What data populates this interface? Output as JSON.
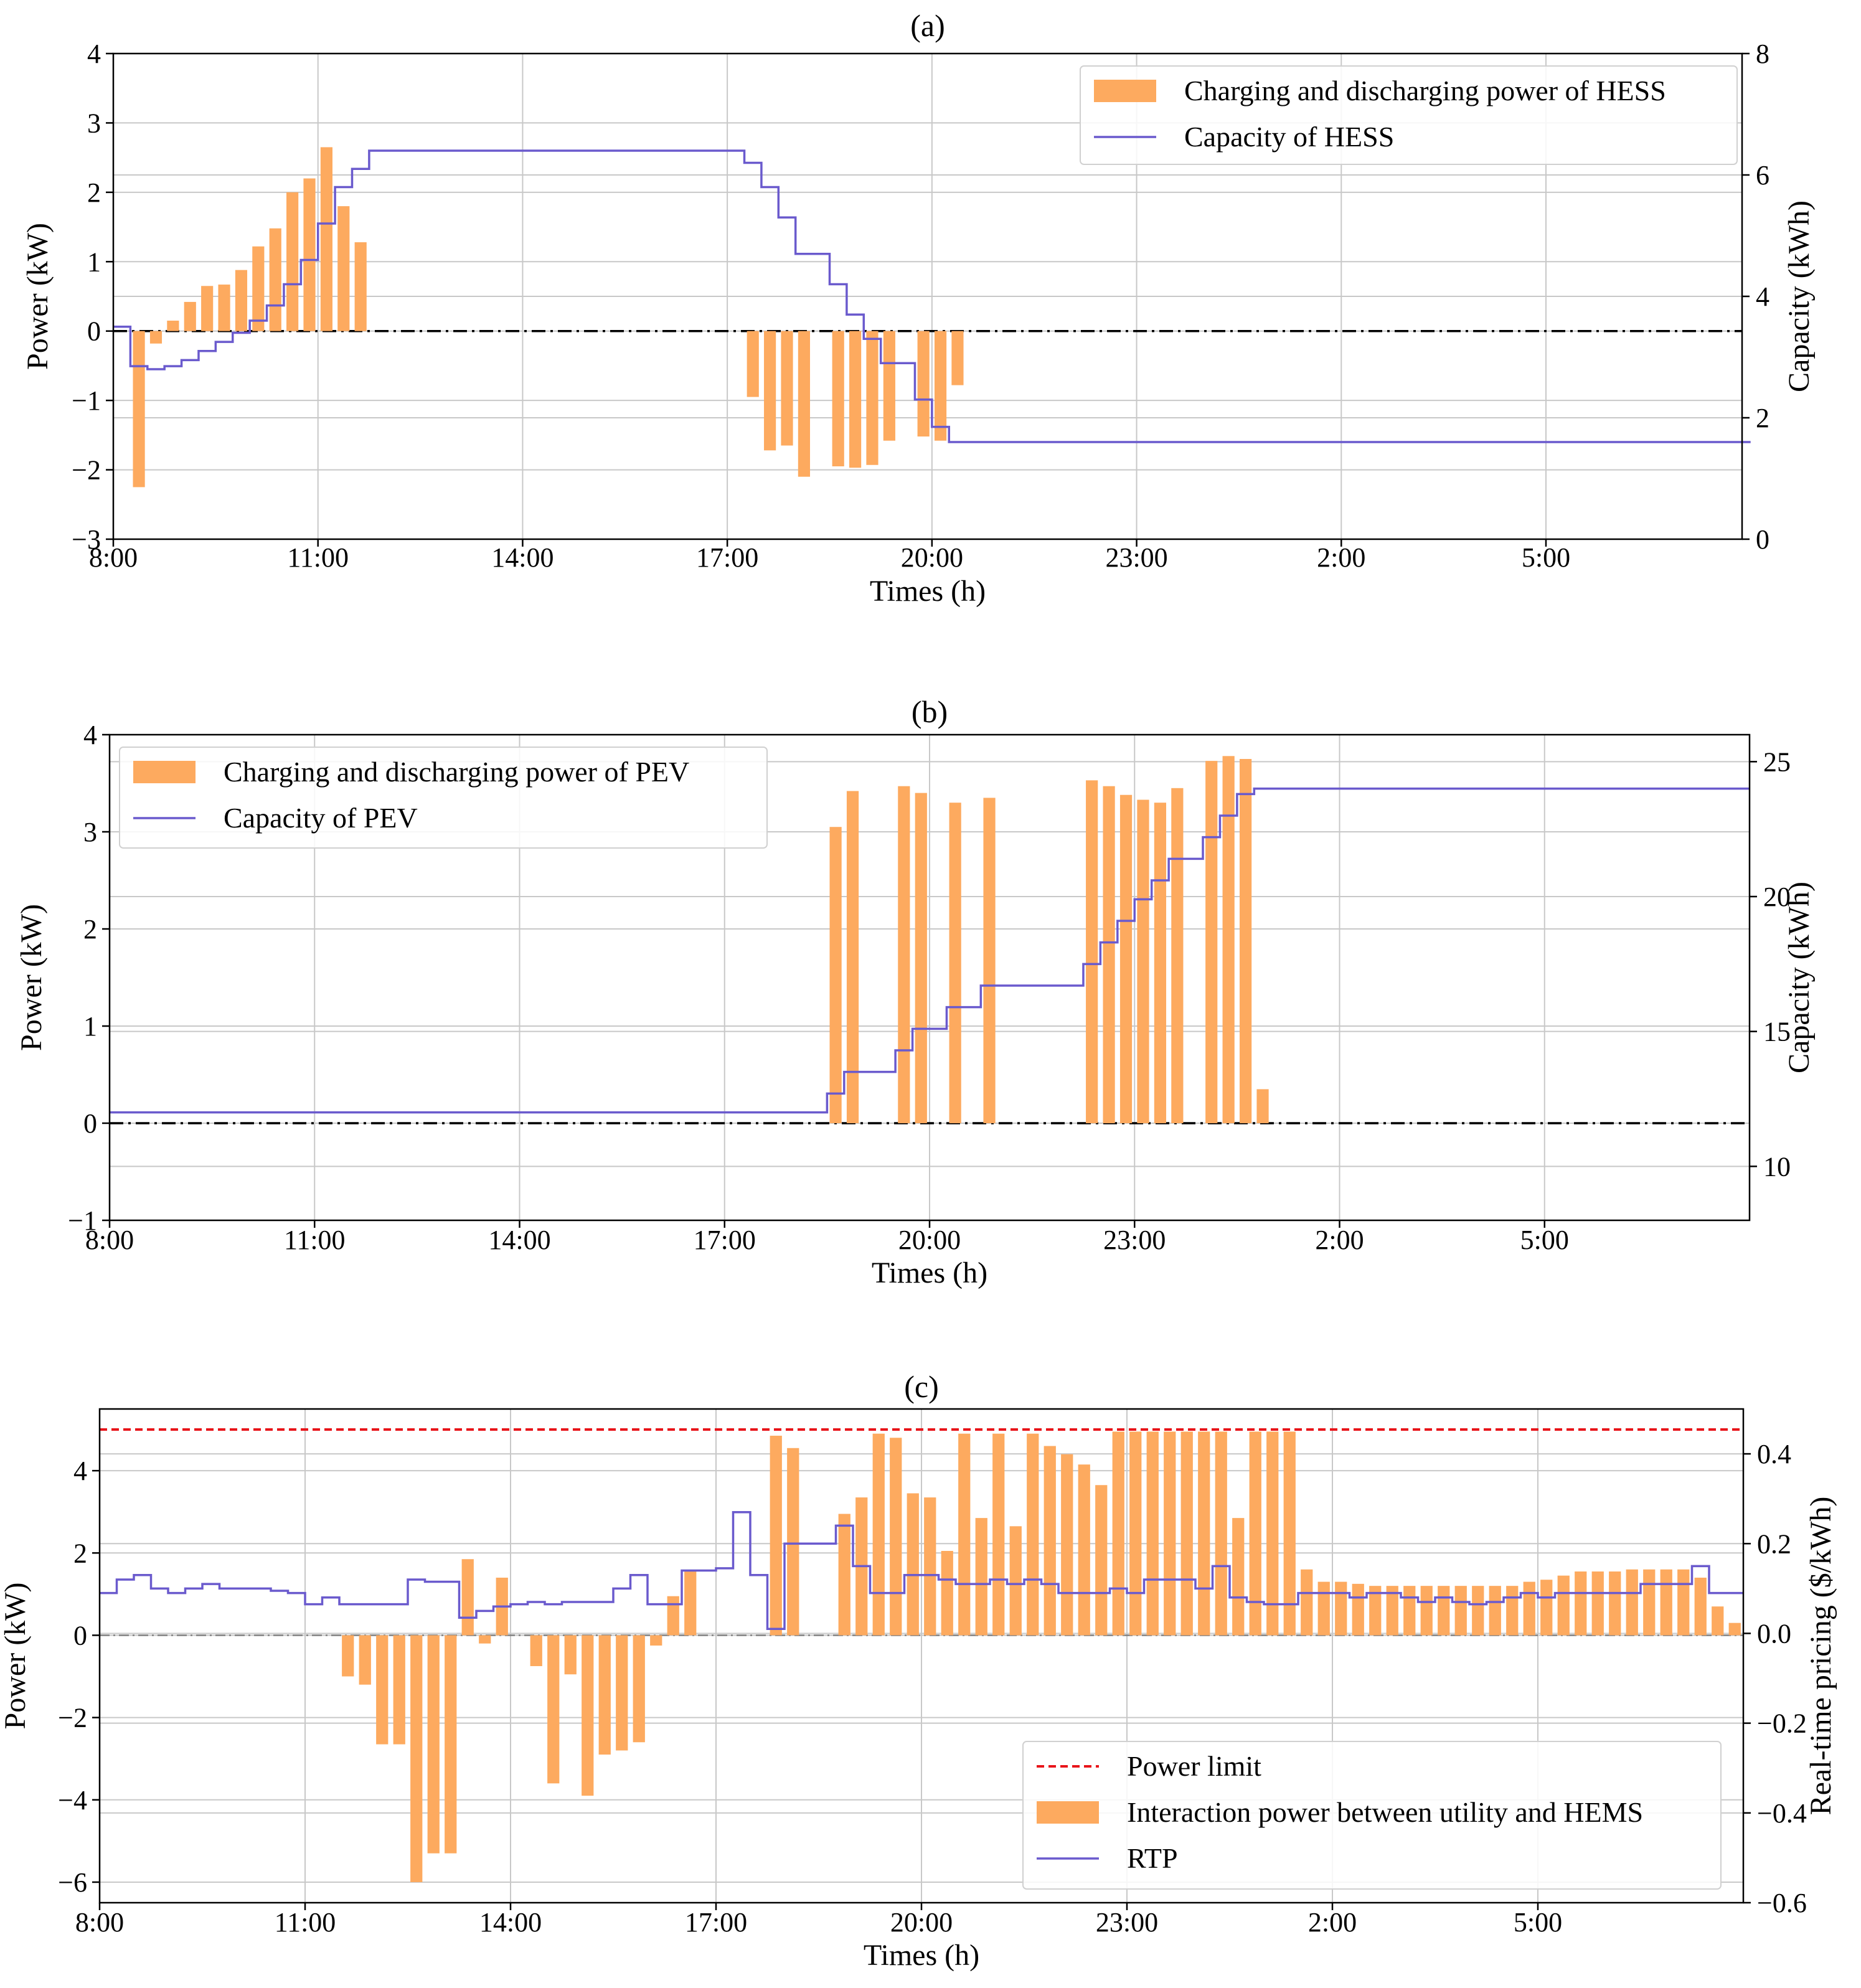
{
  "figure": {
    "x_ticks": [
      "8:00",
      "11:00",
      "14:00",
      "17:00",
      "20:00",
      "23:00",
      "2:00",
      "5:00"
    ],
    "x_label": "Times (h)"
  },
  "chart_data": [
    {
      "type": "bar+step",
      "title": "(a)",
      "xlabel": "Times (h)",
      "ylabel": "Power (kW)",
      "y2label": "Capacity (kWh)",
      "ylim": [
        -3,
        4
      ],
      "y2lim": [
        0,
        8
      ],
      "yticks": [
        -3,
        -2,
        -1,
        0,
        1,
        2,
        3,
        4
      ],
      "y2ticks": [
        0,
        2,
        4,
        6,
        8
      ],
      "xlim": [
        0,
        95.5
      ],
      "xticks": [
        0,
        12,
        24,
        36,
        48,
        60,
        72,
        84
      ],
      "xticklabels": [
        "8:00",
        "11:00",
        "14:00",
        "17:00",
        "20:00",
        "23:00",
        "2:00",
        "5:00"
      ],
      "legend": [
        "Charging and discharging power of HESS",
        "Capacity of HESS"
      ],
      "legend_location": "upper right",
      "colors": {
        "bars": "#fdaa5f",
        "line": "#6a5acd",
        "zero": "#000000"
      },
      "bar_interval": "15 min",
      "bar_values": [
        0,
        -2.25,
        -0.18,
        0.15,
        0.42,
        0.65,
        0.67,
        0.88,
        1.22,
        1.48,
        2.0,
        2.2,
        2.65,
        1.8,
        1.28,
        0,
        0,
        0,
        0,
        0,
        0,
        0,
        0,
        0,
        0,
        0,
        0,
        0,
        0,
        0,
        0,
        0,
        0,
        0,
        0,
        0,
        0,
        -0.95,
        -1.72,
        -1.65,
        -2.1,
        0,
        -1.95,
        -1.97,
        -1.93,
        -1.58,
        0,
        -1.52,
        -1.58,
        -0.78,
        0,
        0,
        0,
        0,
        0,
        0,
        0,
        0,
        0,
        0,
        0,
        0,
        0,
        0,
        0,
        0,
        0,
        0,
        0,
        0,
        0,
        0,
        0,
        0,
        0,
        0,
        0,
        0,
        0,
        0,
        0,
        0,
        0,
        0,
        0,
        0,
        0,
        0,
        0,
        0,
        0,
        0,
        0,
        0,
        0,
        0
      ],
      "capacity_kwh": [
        3.5,
        2.85,
        2.8,
        2.85,
        2.95,
        3.1,
        3.25,
        3.4,
        3.6,
        3.85,
        4.2,
        4.6,
        5.2,
        5.8,
        6.1,
        6.4,
        6.4,
        6.4,
        6.4,
        6.4,
        6.4,
        6.4,
        6.4,
        6.4,
        6.4,
        6.4,
        6.4,
        6.4,
        6.4,
        6.4,
        6.4,
        6.4,
        6.4,
        6.4,
        6.4,
        6.4,
        6.4,
        6.2,
        5.8,
        5.3,
        4.7,
        4.7,
        4.2,
        3.7,
        3.3,
        2.9,
        2.9,
        2.3,
        1.85,
        1.6,
        1.6,
        1.6,
        1.6,
        1.6,
        1.6,
        1.6,
        1.6,
        1.6,
        1.6,
        1.6,
        1.6,
        1.6,
        1.6,
        1.6,
        1.6,
        1.6,
        1.6,
        1.6,
        1.6,
        1.6,
        1.6,
        1.6,
        1.6,
        1.6,
        1.6,
        1.6,
        1.6,
        1.6,
        1.6,
        1.6,
        1.6,
        1.6,
        1.6,
        1.6,
        1.6,
        1.6,
        1.6,
        1.6,
        1.6,
        1.6,
        1.6,
        1.6,
        1.6,
        1.6,
        1.6,
        1.6
      ]
    },
    {
      "type": "bar+step",
      "title": "(b)",
      "xlabel": "Times (h)",
      "ylabel": "Power (kW)",
      "y2label": "Capacity (kWh)",
      "ylim": [
        -1,
        4
      ],
      "y2lim": [
        8,
        26
      ],
      "yticks": [
        -1,
        0,
        1,
        2,
        3,
        4
      ],
      "y2ticks": [
        10,
        15,
        20,
        25
      ],
      "xlim": [
        0,
        96
      ],
      "xticks": [
        0,
        12,
        24,
        36,
        48,
        60,
        72,
        84
      ],
      "xticklabels": [
        "8:00",
        "11:00",
        "14:00",
        "17:00",
        "20:00",
        "23:00",
        "2:00",
        "5:00"
      ],
      "legend": [
        "Charging and discharging power of PEV",
        "Capacity of PEV"
      ],
      "legend_location": "upper left",
      "colors": {
        "bars": "#fdaa5f",
        "line": "#6a5acd",
        "zero": "#000000"
      },
      "bar_interval": "15 min",
      "bar_values": [
        0,
        0,
        0,
        0,
        0,
        0,
        0,
        0,
        0,
        0,
        0,
        0,
        0,
        0,
        0,
        0,
        0,
        0,
        0,
        0,
        0,
        0,
        0,
        0,
        0,
        0,
        0,
        0,
        0,
        0,
        0,
        0,
        0,
        0,
        0,
        0,
        0,
        0,
        0,
        0,
        0,
        0,
        3.05,
        3.42,
        0,
        0,
        3.47,
        3.4,
        0,
        3.3,
        0,
        3.35,
        0,
        0,
        0,
        0,
        0,
        3.53,
        3.47,
        3.38,
        3.33,
        3.3,
        3.45,
        0,
        3.73,
        3.78,
        3.75,
        0.35,
        0,
        0,
        0,
        0,
        0,
        0,
        0,
        0,
        0,
        0,
        0,
        0,
        0,
        0,
        0,
        0,
        0,
        0,
        0,
        0,
        0,
        0,
        0,
        0,
        0,
        0,
        0,
        0
      ],
      "capacity_kwh": [
        12,
        12,
        12,
        12,
        12,
        12,
        12,
        12,
        12,
        12,
        12,
        12,
        12,
        12,
        12,
        12,
        12,
        12,
        12,
        12,
        12,
        12,
        12,
        12,
        12,
        12,
        12,
        12,
        12,
        12,
        12,
        12,
        12,
        12,
        12,
        12,
        12,
        12,
        12,
        12,
        12,
        12,
        12.7,
        13.5,
        13.5,
        13.5,
        14.3,
        15.1,
        15.1,
        15.9,
        15.9,
        16.7,
        16.7,
        16.7,
        16.7,
        16.7,
        16.7,
        17.5,
        18.3,
        19.1,
        19.9,
        20.6,
        21.4,
        21.4,
        22.2,
        23.0,
        23.8,
        24.0,
        24.0,
        24.0,
        24.0,
        24.0,
        24.0,
        24.0,
        24.0,
        24.0,
        24.0,
        24.0,
        24.0,
        24.0,
        24.0,
        24.0,
        24.0,
        24.0,
        24.0,
        24.0,
        24.0,
        24.0,
        24.0,
        24.0,
        24.0,
        24.0,
        24.0,
        24.0,
        24.0,
        24.0
      ]
    },
    {
      "type": "bar+step",
      "title": "(c)",
      "xlabel": "Times (h)",
      "ylabel": "Power (kW)",
      "y2label": "Real-time pricing ($/kWh)",
      "ylim": [
        -6.5,
        5.5
      ],
      "y2lim": [
        -0.6,
        0.5
      ],
      "yticks": [
        -6,
        -4,
        -2,
        0,
        2,
        4
      ],
      "y2ticks": [
        -0.6,
        -0.4,
        -0.2,
        0.0,
        0.2,
        0.4
      ],
      "y2ticklabels": [
        "−0.6",
        "−0.4",
        "−0.2",
        "0.0",
        "0.2",
        "0.4"
      ],
      "xlim": [
        0,
        96
      ],
      "xticks": [
        0,
        12,
        24,
        36,
        48,
        60,
        72,
        84
      ],
      "xticklabels": [
        "8:00",
        "11:00",
        "14:00",
        "17:00",
        "20:00",
        "23:00",
        "2:00",
        "5:00"
      ],
      "legend": [
        "Power limit",
        "Interaction power between utility and HEMS",
        "RTP"
      ],
      "legend_location": "lower right",
      "power_limit_kw": 5,
      "colors": {
        "bars": "#fdaa5f",
        "line": "#6a5acd",
        "limit": "#e8141a",
        "zero": "#7f7f7f"
      },
      "bar_interval": "15 min",
      "bar_values": [
        0,
        0,
        0,
        0,
        0,
        0,
        0,
        0,
        0,
        0,
        0,
        0,
        0,
        0,
        -1.0,
        -1.2,
        -2.65,
        -2.65,
        -6.0,
        -5.3,
        -5.3,
        1.85,
        -0.2,
        1.4,
        0,
        -0.75,
        -3.6,
        -0.95,
        -3.9,
        -2.9,
        -2.8,
        -2.6,
        -0.25,
        0.95,
        1.55,
        0,
        0,
        0,
        0,
        4.85,
        4.55,
        0,
        0,
        2.95,
        3.35,
        4.9,
        4.8,
        3.45,
        3.35,
        2.05,
        4.9,
        2.85,
        4.9,
        2.65,
        4.9,
        4.6,
        4.4,
        4.15,
        3.65,
        4.95,
        4.95,
        4.95,
        4.95,
        4.95,
        4.95,
        4.95,
        2.85,
        4.95,
        4.95,
        4.95,
        1.6,
        1.3,
        1.3,
        1.25,
        1.2,
        1.2,
        1.2,
        1.2,
        1.2,
        1.2,
        1.2,
        1.2,
        1.2,
        1.3,
        1.35,
        1.45,
        1.55,
        1.55,
        1.55,
        1.6,
        1.6,
        1.6,
        1.6,
        1.4,
        0.7,
        0.3
      ],
      "rtp_dollar_per_kwh": [
        0.09,
        0.12,
        0.13,
        0.1,
        0.09,
        0.1,
        0.11,
        0.1,
        0.1,
        0.1,
        0.095,
        0.09,
        0.065,
        0.08,
        0.065,
        0.065,
        0.065,
        0.065,
        0.12,
        0.115,
        0.115,
        0.035,
        0.05,
        0.06,
        0.065,
        0.07,
        0.065,
        0.07,
        0.07,
        0.07,
        0.1,
        0.13,
        0.065,
        0.065,
        0.14,
        0.14,
        0.145,
        0.27,
        0.13,
        0.01,
        0.2,
        0.2,
        0.2,
        0.24,
        0.15,
        0.09,
        0.09,
        0.13,
        0.13,
        0.12,
        0.11,
        0.11,
        0.12,
        0.11,
        0.12,
        0.11,
        0.09,
        0.09,
        0.09,
        0.1,
        0.09,
        0.12,
        0.12,
        0.12,
        0.1,
        0.15,
        0.08,
        0.07,
        0.065,
        0.065,
        0.09,
        0.09,
        0.09,
        0.08,
        0.09,
        0.09,
        0.08,
        0.07,
        0.08,
        0.07,
        0.065,
        0.07,
        0.08,
        0.09,
        0.08,
        0.09,
        0.09,
        0.09,
        0.09,
        0.09,
        0.11,
        0.11,
        0.11,
        0.15,
        0.09,
        0.09
      ]
    }
  ]
}
